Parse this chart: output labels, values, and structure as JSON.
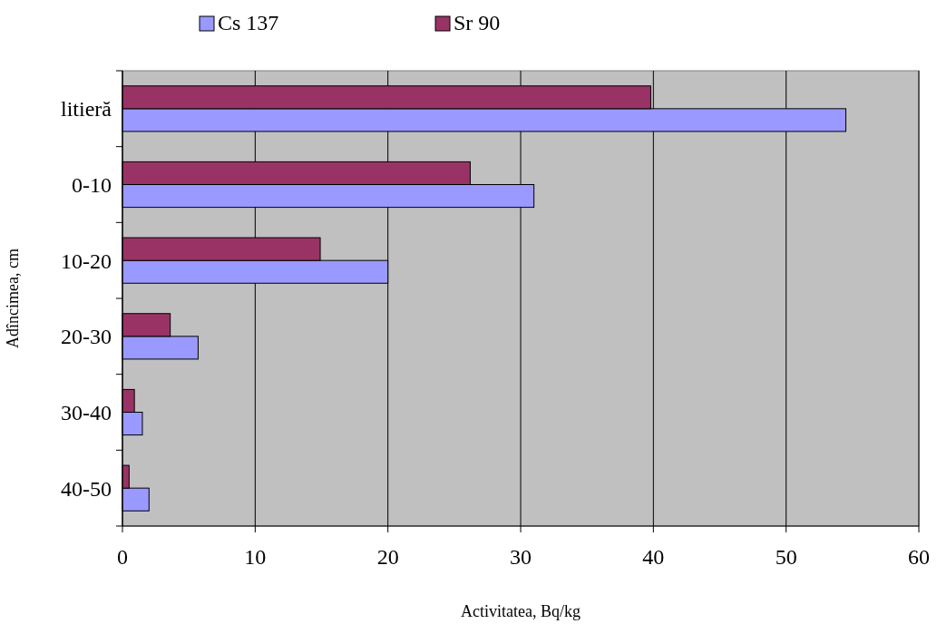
{
  "chart_data": {
    "type": "bar",
    "orientation": "horizontal",
    "xlabel": "Activitatea, Bq/kg",
    "ylabel": "Adîncimea, cm",
    "categories": [
      "litieră",
      "0-10",
      "10-20",
      "20-30",
      "30-40",
      "40-50"
    ],
    "series": [
      {
        "name": "Cs 137",
        "color": "#9999ff",
        "values": [
          54.5,
          31,
          20,
          5.7,
          1.5,
          2
        ]
      },
      {
        "name": "Sr 90",
        "color": "#993366",
        "values": [
          39.8,
          26.2,
          14.9,
          3.6,
          0.9,
          0.5
        ]
      }
    ],
    "xlim": [
      0,
      60
    ],
    "xticks": [
      0,
      10,
      20,
      30,
      40,
      50,
      60
    ],
    "grid": "x",
    "legend": "top"
  }
}
